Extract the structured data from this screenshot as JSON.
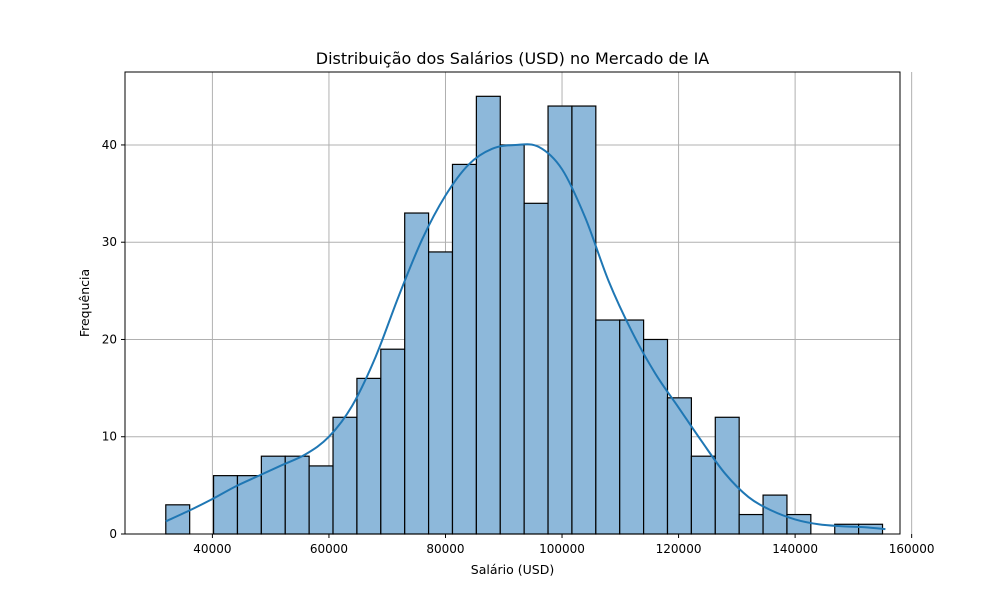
{
  "chart_data": {
    "type": "bar",
    "subtype": "histogram-with-kde",
    "title": "Distribuição dos Salários (USD) no Mercado de IA",
    "xlabel": "Salário (USD)",
    "ylabel": "Frequência",
    "xlim": [
      25000,
      158000
    ],
    "ylim": [
      0,
      47.5
    ],
    "xticks": [
      40000,
      60000,
      80000,
      100000,
      120000,
      140000,
      160000
    ],
    "yticks": [
      0,
      10,
      20,
      30,
      40
    ],
    "grid": true,
    "bin_start": 32000,
    "bin_width": 4100,
    "counts": [
      3,
      0,
      6,
      6,
      8,
      8,
      7,
      12,
      16,
      19,
      33,
      29,
      38,
      45,
      40,
      34,
      44,
      44,
      22,
      22,
      20,
      14,
      8,
      12,
      2,
      4,
      2,
      0,
      1,
      1
    ],
    "kde": {
      "x": [
        32000,
        36000,
        40000,
        44000,
        48000,
        52000,
        56000,
        60000,
        64000,
        68000,
        72000,
        76000,
        80000,
        84000,
        88000,
        92000,
        96000,
        100000,
        104000,
        108000,
        112000,
        116000,
        120000,
        124000,
        128000,
        132000,
        136000,
        140000,
        144000,
        148000,
        152000,
        155500
      ],
      "y": [
        1.3,
        2.4,
        3.6,
        4.9,
        6.0,
        7.1,
        8.2,
        10.0,
        13.2,
        18.2,
        24.5,
        30.3,
        34.8,
        38.0,
        39.6,
        40.0,
        39.8,
        37.5,
        32.5,
        26.0,
        20.8,
        16.5,
        13.0,
        9.5,
        6.2,
        3.8,
        2.4,
        1.5,
        1.0,
        0.8,
        0.7,
        0.5
      ]
    },
    "colors": {
      "bar_fill": "#8db8da",
      "bar_edge": "#000000",
      "kde_line": "#1f77b4",
      "grid": "#b0b0b0"
    }
  }
}
